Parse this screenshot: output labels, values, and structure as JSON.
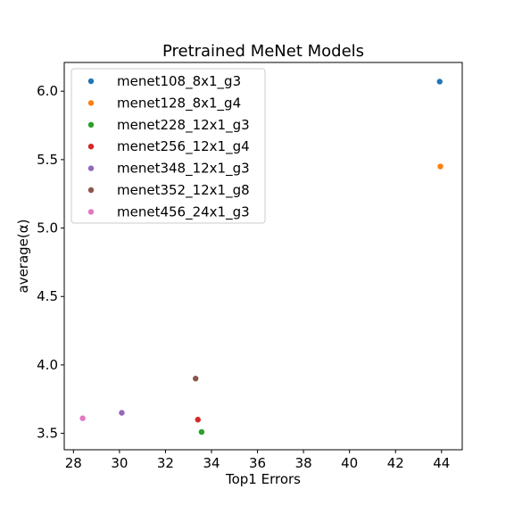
{
  "chart_data": {
    "type": "scatter",
    "title": "Pretrained MeNet Models",
    "xlabel": "Top1 Errors",
    "ylabel": "average(α)",
    "xlim": [
      27.6,
      44.9
    ],
    "ylim": [
      3.38,
      6.21
    ],
    "xticks": [
      28,
      30,
      32,
      34,
      36,
      38,
      40,
      42,
      44
    ],
    "yticks": [
      3.5,
      4.0,
      4.5,
      5.0,
      5.5,
      6.0
    ],
    "grid": false,
    "legend_position": "top-left",
    "series": [
      {
        "name": "menet108_8x1_g3",
        "color": "#1f77b4",
        "x": [
          43.92
        ],
        "y": [
          6.07
        ]
      },
      {
        "name": "menet128_8x1_g4",
        "color": "#ff7f0e",
        "x": [
          43.95
        ],
        "y": [
          5.45
        ]
      },
      {
        "name": "menet228_12x1_g3",
        "color": "#2ca02c",
        "x": [
          33.57
        ],
        "y": [
          3.51
        ]
      },
      {
        "name": "menet256_12x1_g4",
        "color": "#d62728",
        "x": [
          33.41
        ],
        "y": [
          3.6
        ]
      },
      {
        "name": "menet348_12x1_g3",
        "color": "#9467bd",
        "x": [
          30.1
        ],
        "y": [
          3.65
        ]
      },
      {
        "name": "menet352_12x1_g8",
        "color": "#8c564b",
        "x": [
          33.31
        ],
        "y": [
          3.9
        ]
      },
      {
        "name": "menet456_24x1_g3",
        "color": "#e377c2",
        "x": [
          28.4
        ],
        "y": [
          3.61
        ]
      }
    ]
  }
}
